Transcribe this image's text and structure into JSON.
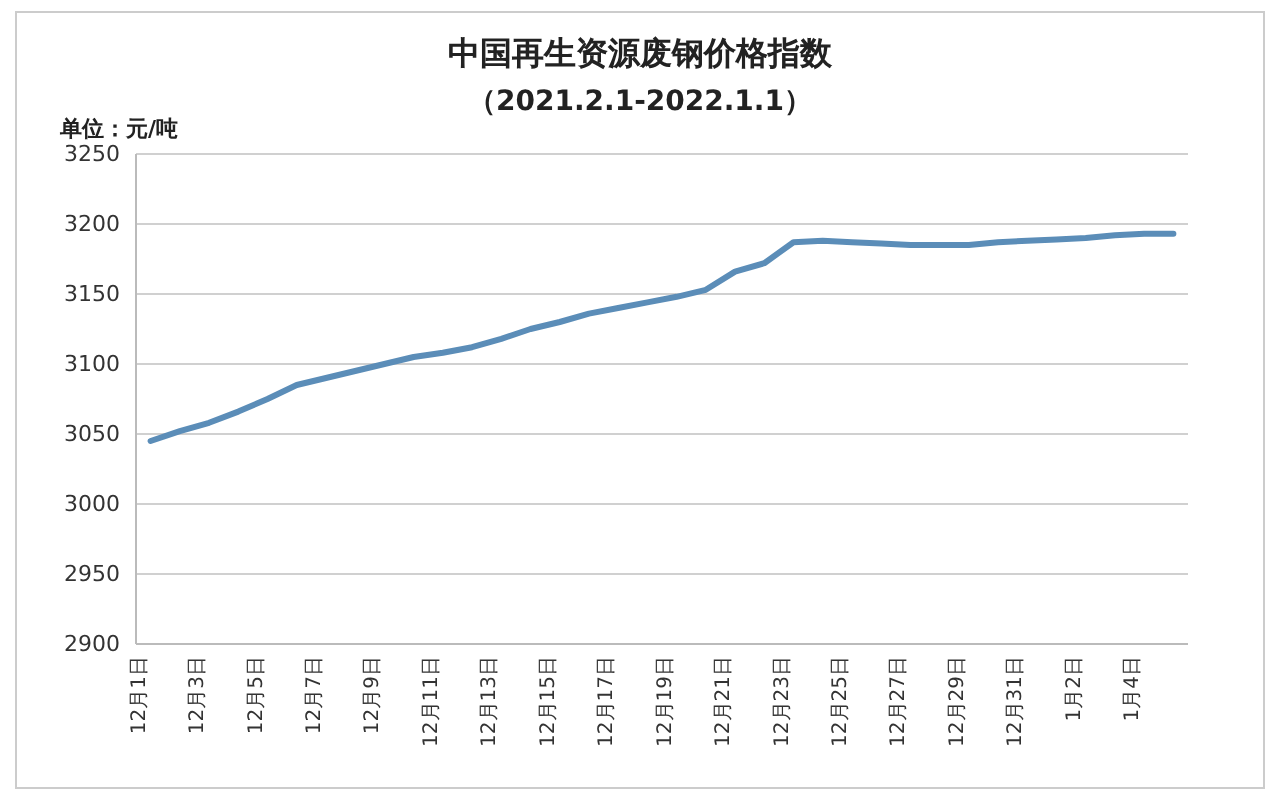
{
  "chart_data": {
    "type": "line",
    "title": "中国再生资源废钢价格指数",
    "subtitle": "（2021.2.1-2022.1.1）",
    "ylabel": "单位：元/吨",
    "categories": [
      "12月1日",
      null,
      "12月3日",
      null,
      "12月5日",
      null,
      "12月7日",
      null,
      "12月9日",
      null,
      "12月11日",
      null,
      "12月13日",
      null,
      "12月15日",
      null,
      "12月17日",
      null,
      "12月19日",
      null,
      "12月21日",
      null,
      "12月23日",
      null,
      "12月25日",
      null,
      "12月27日",
      null,
      "12月29日",
      null,
      "12月31日",
      null,
      "1月2日",
      null,
      "1月4日",
      null
    ],
    "series": [
      {
        "color": "#5b8db8",
        "values": [
          3045,
          3052,
          3058,
          3066,
          3075,
          3085,
          3090,
          3095,
          3100,
          3105,
          3108,
          3112,
          3118,
          3125,
          3130,
          3136,
          3140,
          3144,
          3148,
          3153,
          3166,
          3172,
          3187,
          3188,
          3187,
          3186,
          3185,
          3185,
          3185,
          3187,
          3188,
          3189,
          3190,
          3192,
          3193,
          3193
        ]
      }
    ],
    "ylim": [
      2900,
      3250
    ],
    "yticks": [
      2900,
      2950,
      3000,
      3050,
      3100,
      3150,
      3200,
      3250
    ],
    "grid": "y",
    "marker": "none",
    "line_style": "solid"
  }
}
